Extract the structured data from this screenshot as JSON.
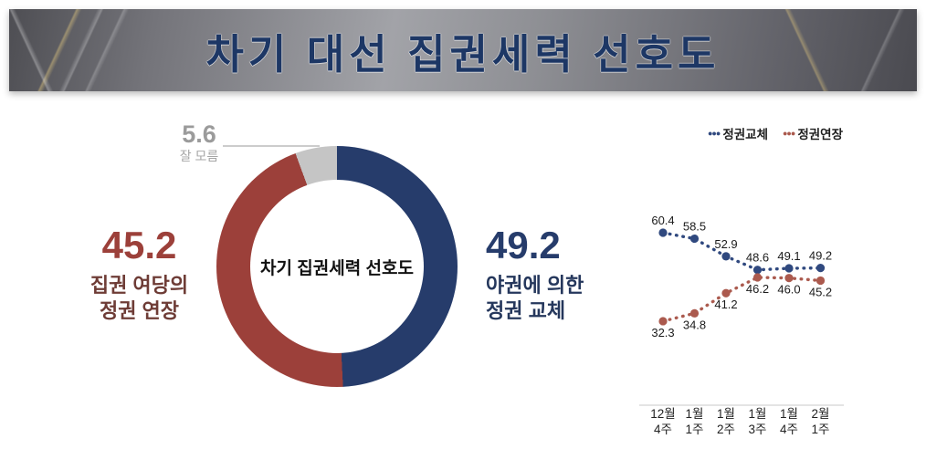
{
  "header": {
    "title": "차기 대선 집권세력 선호도"
  },
  "chart_data": [
    {
      "type": "pie",
      "subtype": "donut",
      "title": "차기 집권세력 선호도",
      "slices": [
        {
          "label": "야권에 의한\n정권 교체",
          "value": 49.2,
          "color": "#263c6b"
        },
        {
          "label": "집권 여당의\n정권 연장",
          "value": 45.2,
          "color": "#9c403a"
        },
        {
          "label": "잘 모름",
          "value": 5.6,
          "color": "#c5c5c5"
        }
      ]
    },
    {
      "type": "line",
      "categories": [
        "12월\n4주",
        "1월\n1주",
        "1월\n2주",
        "1월\n3주",
        "1월\n4주",
        "2월\n1주"
      ],
      "series": [
        {
          "name": "정권교체",
          "color": "#30497f",
          "values": [
            60.4,
            58.5,
            52.9,
            48.6,
            49.1,
            49.2
          ]
        },
        {
          "name": "정권연장",
          "color": "#ab5a4e",
          "values": [
            32.3,
            34.8,
            41.2,
            46.2,
            46.0,
            45.2
          ]
        }
      ],
      "legend_position": "top",
      "ylim": [
        30,
        62
      ],
      "grid": false
    }
  ],
  "legend": {
    "dots_glyph": "●●●"
  }
}
